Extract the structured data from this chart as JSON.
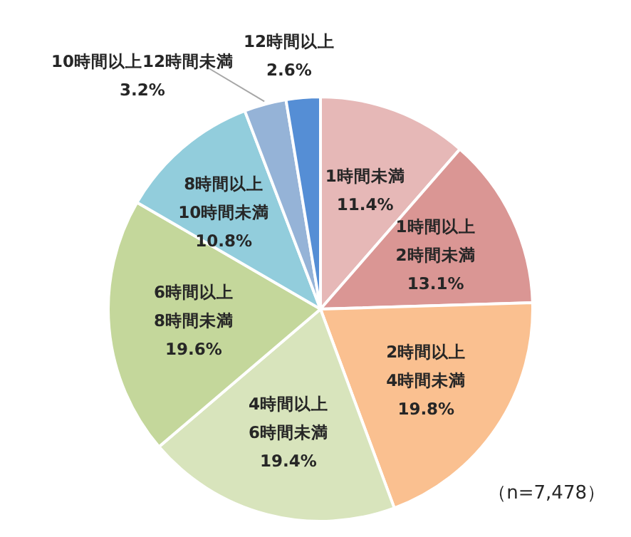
{
  "chart_data": {
    "type": "pie",
    "categories": [
      "1時間未満",
      "1時間以上\n2時間未満",
      "2時間以上\n4時間未満",
      "4時間以上\n6時間未満",
      "6時間以上\n8時間未満",
      "8時間以上\n10時間未満",
      "10時間以上12時間未満",
      "12時間以上"
    ],
    "values": [
      11.4,
      13.1,
      19.8,
      19.4,
      19.6,
      10.8,
      3.2,
      2.6
    ],
    "value_labels": [
      "11.4%",
      "13.1%",
      "19.8%",
      "19.4%",
      "19.6%",
      "10.8%",
      "3.2%",
      "2.6%"
    ],
    "colors": [
      "#e6b8b7",
      "#da9694",
      "#fac090",
      "#d8e4bc",
      "#c4d79b",
      "#92cddc",
      "#95b3d7",
      "#558ed5"
    ],
    "annotations": [
      "（n=7,478）"
    ]
  }
}
